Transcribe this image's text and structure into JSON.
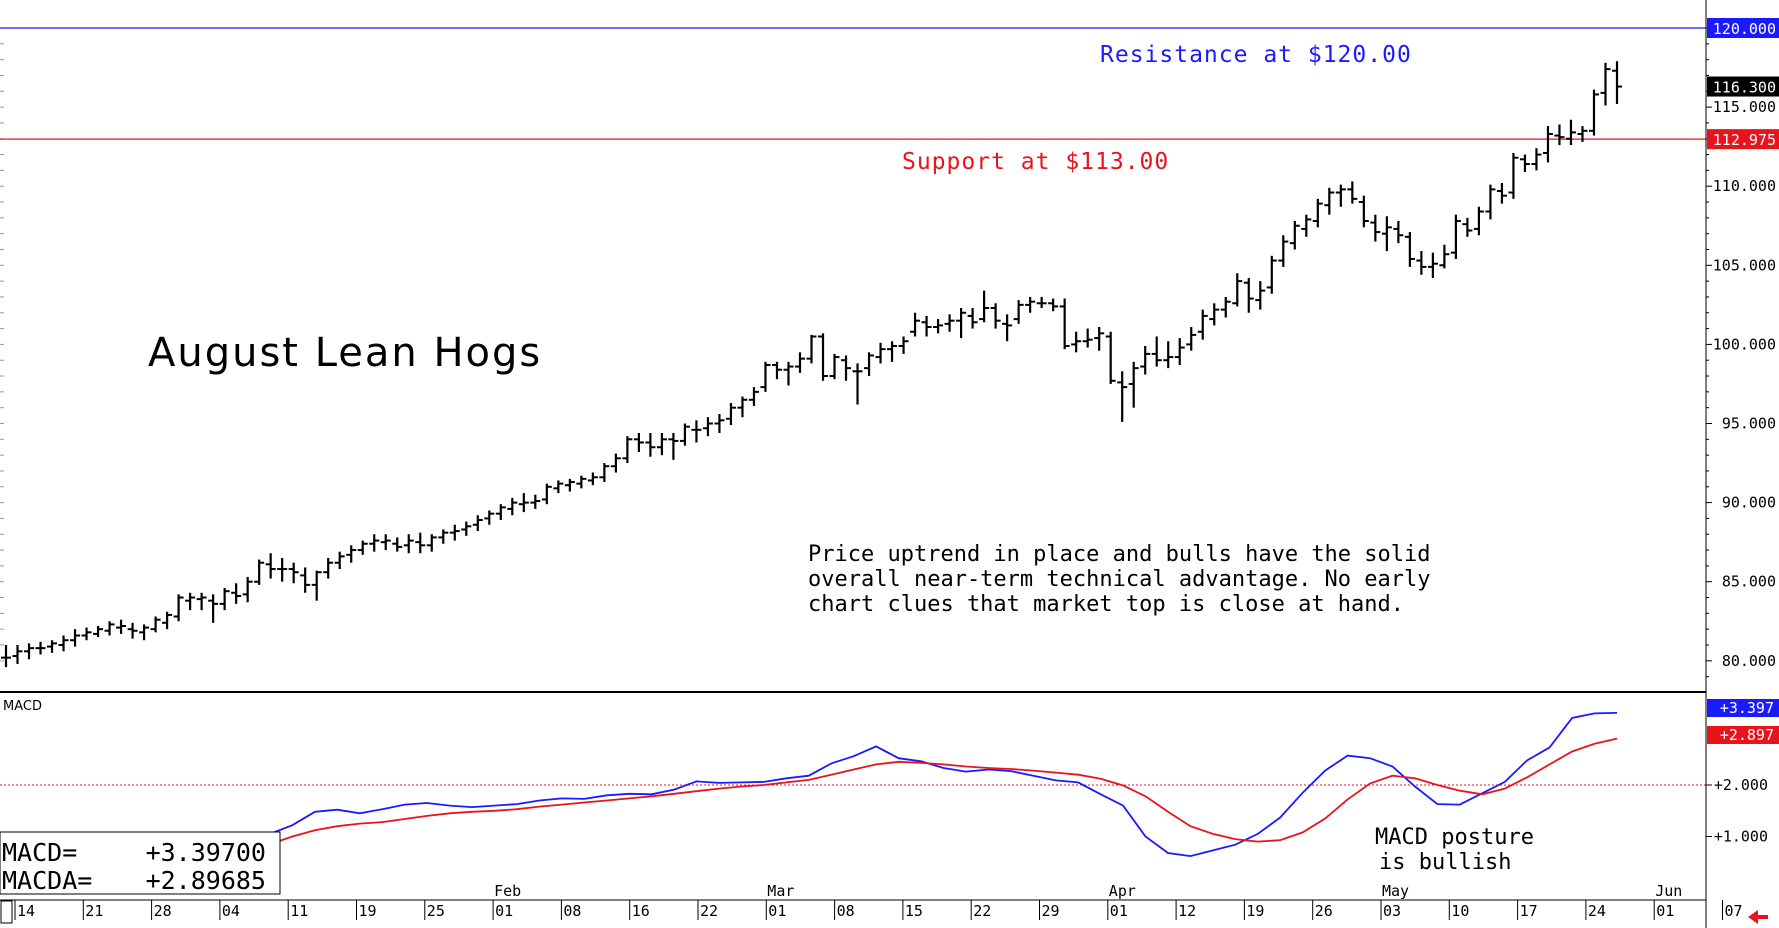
{
  "chart_data": [
    {
      "type": "ohlc",
      "title": "August Lean Hogs",
      "annotation": [
        "Price uptrend in place and bulls have the solid",
        "overall near-term technical advantage. No early",
        "chart clues that market top is close at hand."
      ],
      "ylim": [
        78,
        121
      ],
      "ytick_labels": [
        "120.000",
        "115.000",
        "110.000",
        "105.000",
        "100.000",
        "95.000",
        "90.000",
        "85.000",
        "80.000"
      ],
      "yticks": [
        120,
        115,
        110,
        105,
        100,
        95,
        90,
        85,
        80
      ],
      "resistance": {
        "value": 120.0,
        "label": "Resistance at $120.00",
        "tag": "120.000",
        "color": "#1a1aff"
      },
      "support": {
        "value": 112.975,
        "label": "Support at $113.00",
        "tag": "112.975",
        "color": "#e8141c"
      },
      "last_price": {
        "value": 116.3,
        "tag": "116.300"
      },
      "date_labels": [
        "14",
        "21",
        "28",
        "04",
        "11",
        "19",
        "25",
        "01",
        "08",
        "16",
        "22",
        "01",
        "08",
        "15",
        "22",
        "29",
        "01",
        "12",
        "19",
        "26",
        "03",
        "10",
        "17",
        "24",
        "01",
        "07"
      ],
      "month_labels": [
        {
          "label": "Feb",
          "at": 7
        },
        {
          "label": "Mar",
          "at": 11
        },
        {
          "label": "Apr",
          "at": 16
        },
        {
          "label": "May",
          "at": 20
        },
        {
          "label": "Jun",
          "at": 24
        }
      ],
      "bars": [
        [
          80.2,
          81.0,
          79.6,
          80.2
        ],
        [
          80.3,
          81.0,
          79.8,
          80.6
        ],
        [
          80.6,
          81.1,
          80.1,
          80.8
        ],
        [
          80.8,
          81.2,
          80.4,
          80.8
        ],
        [
          80.9,
          81.3,
          80.5,
          81.1
        ],
        [
          81.0,
          81.6,
          80.6,
          81.3
        ],
        [
          81.3,
          82.0,
          80.9,
          81.6
        ],
        [
          81.6,
          82.1,
          81.3,
          81.8
        ],
        [
          81.7,
          82.2,
          81.5,
          82.0
        ],
        [
          81.9,
          82.5,
          81.6,
          82.3
        ],
        [
          82.1,
          82.6,
          81.7,
          82.2
        ],
        [
          82.0,
          82.4,
          81.4,
          81.9
        ],
        [
          81.8,
          82.3,
          81.3,
          82.1
        ],
        [
          82.0,
          82.8,
          81.8,
          82.6
        ],
        [
          82.4,
          83.1,
          82.0,
          82.9
        ],
        [
          82.8,
          84.2,
          82.5,
          84.0
        ],
        [
          83.8,
          84.3,
          83.2,
          84.0
        ],
        [
          83.9,
          84.3,
          83.2,
          84.0
        ],
        [
          83.8,
          84.2,
          82.4,
          83.6
        ],
        [
          83.6,
          84.6,
          83.2,
          84.4
        ],
        [
          84.3,
          84.9,
          83.6,
          84.1
        ],
        [
          84.2,
          85.3,
          83.7,
          85.0
        ],
        [
          85.0,
          86.4,
          84.8,
          86.2
        ],
        [
          86.1,
          86.8,
          85.2,
          85.8
        ],
        [
          85.8,
          86.5,
          85.0,
          85.8
        ],
        [
          85.8,
          86.2,
          84.9,
          85.6
        ],
        [
          85.4,
          85.9,
          84.3,
          84.8
        ],
        [
          84.8,
          85.7,
          83.8,
          85.6
        ],
        [
          85.6,
          86.5,
          85.2,
          86.2
        ],
        [
          86.2,
          86.9,
          85.8,
          86.6
        ],
        [
          86.7,
          87.3,
          86.2,
          87.0
        ],
        [
          87.0,
          87.6,
          86.7,
          87.4
        ],
        [
          87.4,
          88.0,
          86.9,
          87.6
        ],
        [
          87.5,
          88.0,
          87.0,
          87.6
        ],
        [
          87.4,
          87.8,
          86.9,
          87.2
        ],
        [
          87.3,
          88.0,
          86.8,
          87.6
        ],
        [
          87.5,
          88.1,
          86.8,
          87.3
        ],
        [
          87.3,
          88.0,
          86.9,
          87.8
        ],
        [
          87.8,
          88.3,
          87.4,
          88.1
        ],
        [
          88.1,
          88.6,
          87.6,
          88.2
        ],
        [
          88.3,
          88.8,
          87.9,
          88.5
        ],
        [
          88.6,
          89.2,
          88.2,
          88.9
        ],
        [
          89.0,
          89.5,
          88.6,
          89.3
        ],
        [
          89.3,
          89.9,
          88.9,
          89.7
        ],
        [
          89.6,
          90.3,
          89.2,
          90.0
        ],
        [
          89.9,
          90.6,
          89.4,
          90.0
        ],
        [
          90.0,
          90.5,
          89.6,
          90.1
        ],
        [
          90.2,
          91.2,
          89.9,
          91.0
        ],
        [
          90.9,
          91.4,
          90.6,
          91.2
        ],
        [
          91.1,
          91.5,
          90.7,
          91.3
        ],
        [
          91.2,
          91.7,
          90.9,
          91.5
        ],
        [
          91.4,
          91.9,
          91.1,
          91.6
        ],
        [
          91.6,
          92.5,
          91.3,
          92.3
        ],
        [
          92.3,
          93.1,
          91.9,
          92.8
        ],
        [
          92.8,
          94.2,
          92.5,
          94.0
        ],
        [
          94.0,
          94.4,
          93.2,
          93.8
        ],
        [
          93.8,
          94.4,
          92.9,
          93.5
        ],
        [
          93.5,
          94.4,
          93.0,
          94.0
        ],
        [
          94.0,
          94.4,
          92.7,
          93.9
        ],
        [
          93.9,
          95.0,
          93.6,
          94.8
        ],
        [
          94.6,
          95.2,
          93.8,
          94.6
        ],
        [
          94.7,
          95.4,
          94.2,
          95.0
        ],
        [
          95.0,
          95.6,
          94.4,
          95.2
        ],
        [
          95.3,
          96.3,
          94.9,
          96.0
        ],
        [
          96.0,
          96.7,
          95.4,
          96.5
        ],
        [
          96.5,
          97.3,
          96.1,
          97.0
        ],
        [
          97.3,
          98.9,
          97.0,
          98.7
        ],
        [
          98.7,
          98.9,
          97.8,
          98.4
        ],
        [
          98.4,
          98.9,
          97.4,
          98.6
        ],
        [
          98.6,
          99.5,
          98.2,
          99.1
        ],
        [
          99.1,
          100.6,
          98.8,
          100.5
        ],
        [
          100.5,
          100.7,
          97.7,
          98.0
        ],
        [
          98.0,
          99.4,
          97.8,
          99.2
        ],
        [
          99.0,
          99.3,
          97.7,
          98.5
        ],
        [
          98.3,
          98.8,
          96.2,
          98.3
        ],
        [
          98.5,
          99.5,
          98.0,
          99.3
        ],
        [
          99.2,
          100.1,
          98.8,
          99.7
        ],
        [
          99.7,
          100.2,
          98.9,
          99.9
        ],
        [
          99.9,
          100.5,
          99.4,
          100.2
        ],
        [
          100.8,
          102.0,
          100.5,
          101.5
        ],
        [
          101.4,
          101.8,
          100.5,
          101.1
        ],
        [
          101.1,
          101.6,
          100.7,
          101.2
        ],
        [
          101.3,
          101.9,
          100.8,
          101.5
        ],
        [
          101.5,
          102.3,
          100.4,
          102.0
        ],
        [
          101.8,
          102.3,
          101.0,
          101.4
        ],
        [
          101.6,
          103.4,
          101.4,
          102.3
        ],
        [
          102.3,
          102.6,
          101.0,
          101.5
        ],
        [
          101.3,
          101.9,
          100.2,
          101.2
        ],
        [
          101.6,
          102.8,
          101.3,
          102.5
        ],
        [
          102.5,
          103.0,
          102.0,
          102.7
        ],
        [
          102.6,
          103.0,
          102.3,
          102.6
        ],
        [
          102.6,
          102.9,
          102.1,
          102.4
        ],
        [
          102.4,
          102.9,
          99.7,
          99.9
        ],
        [
          100.0,
          100.8,
          99.5,
          100.2
        ],
        [
          100.2,
          101.0,
          99.8,
          100.3
        ],
        [
          100.4,
          101.1,
          99.6,
          100.7
        ],
        [
          100.5,
          100.8,
          97.5,
          97.7
        ],
        [
          97.6,
          98.3,
          95.1,
          97.3
        ],
        [
          97.5,
          98.9,
          96.0,
          98.5
        ],
        [
          98.6,
          99.9,
          98.1,
          99.4
        ],
        [
          99.4,
          100.5,
          98.6,
          99.0
        ],
        [
          99.0,
          100.2,
          98.5,
          99.2
        ],
        [
          99.2,
          100.4,
          98.7,
          99.8
        ],
        [
          100.0,
          101.1,
          99.6,
          100.6
        ],
        [
          100.8,
          102.2,
          100.3,
          101.8
        ],
        [
          101.6,
          102.6,
          101.2,
          102.2
        ],
        [
          102.2,
          103.0,
          101.7,
          102.7
        ],
        [
          102.6,
          104.5,
          102.4,
          104.0
        ],
        [
          103.9,
          104.2,
          102.0,
          102.9
        ],
        [
          102.8,
          104.0,
          102.2,
          103.4
        ],
        [
          103.6,
          105.6,
          103.2,
          105.3
        ],
        [
          105.3,
          106.9,
          104.9,
          106.5
        ],
        [
          106.4,
          107.8,
          106.0,
          107.5
        ],
        [
          107.3,
          108.2,
          106.8,
          107.9
        ],
        [
          107.8,
          109.2,
          107.4,
          108.9
        ],
        [
          108.8,
          109.9,
          108.2,
          109.6
        ],
        [
          109.6,
          110.1,
          108.7,
          109.8
        ],
        [
          109.8,
          110.3,
          108.9,
          109.2
        ],
        [
          109.0,
          109.4,
          107.4,
          107.8
        ],
        [
          107.7,
          108.2,
          106.5,
          107.1
        ],
        [
          107.0,
          108.1,
          105.9,
          107.4
        ],
        [
          107.3,
          107.8,
          106.4,
          106.9
        ],
        [
          106.8,
          107.1,
          104.9,
          105.4
        ],
        [
          105.3,
          105.9,
          104.4,
          104.9
        ],
        [
          104.9,
          105.8,
          104.2,
          105.1
        ],
        [
          105.0,
          106.3,
          104.8,
          105.7
        ],
        [
          105.8,
          108.2,
          105.4,
          107.8
        ],
        [
          107.6,
          108.0,
          106.8,
          107.2
        ],
        [
          107.3,
          108.7,
          106.9,
          108.4
        ],
        [
          108.4,
          110.1,
          107.9,
          109.8
        ],
        [
          109.7,
          110.2,
          108.9,
          109.4
        ],
        [
          109.6,
          112.1,
          109.2,
          111.8
        ],
        [
          111.7,
          112.0,
          110.9,
          111.4
        ],
        [
          111.4,
          112.4,
          111.0,
          112.0
        ],
        [
          112.1,
          113.8,
          111.5,
          113.3
        ],
        [
          113.2,
          113.9,
          112.6,
          113.1
        ],
        [
          113.0,
          114.2,
          112.6,
          113.4
        ],
        [
          113.3,
          113.8,
          112.8,
          113.5
        ],
        [
          113.5,
          116.1,
          113.2,
          115.8
        ],
        [
          115.9,
          117.8,
          115.1,
          117.4
        ],
        [
          117.3,
          117.9,
          115.2,
          116.3
        ]
      ]
    },
    {
      "type": "line",
      "title": "MACD",
      "zero_label": "+2.000",
      "ytick_labels": [
        "+2.000",
        "+1.000"
      ],
      "ylim": [
        0.0,
        3.7
      ],
      "readouts": [
        {
          "label": "MACD=",
          "value": "+3.39700"
        },
        {
          "label": "MACDA=",
          "value": "+2.89685"
        }
      ],
      "series": [
        {
          "name": "MACD",
          "color": "#1a1aff",
          "tag": "+3.397",
          "values": [
            1.05,
            1.22,
            1.48,
            1.52,
            1.45,
            1.53,
            1.62,
            1.65,
            1.6,
            1.57,
            1.6,
            1.63,
            1.7,
            1.74,
            1.73,
            1.8,
            1.83,
            1.82,
            1.91,
            2.07,
            2.04,
            2.05,
            2.06,
            2.13,
            2.18,
            2.42,
            2.56,
            2.75,
            2.52,
            2.46,
            2.33,
            2.26,
            2.3,
            2.27,
            2.18,
            2.09,
            2.05,
            1.82,
            1.6,
            1.0,
            0.68,
            0.62,
            0.73,
            0.84,
            1.05,
            1.37,
            1.85,
            2.28,
            2.57,
            2.52,
            2.36,
            1.97,
            1.63,
            1.62,
            1.84,
            2.06,
            2.48,
            2.73,
            3.3,
            3.39,
            3.4
          ]
        },
        {
          "name": "MACDA",
          "color": "#e8141c",
          "tag": "+2.897",
          "values": [
            0.85,
            1.0,
            1.12,
            1.2,
            1.25,
            1.28,
            1.34,
            1.4,
            1.45,
            1.48,
            1.5,
            1.53,
            1.58,
            1.62,
            1.66,
            1.7,
            1.74,
            1.78,
            1.83,
            1.88,
            1.93,
            1.97,
            2.0,
            2.05,
            2.1,
            2.2,
            2.3,
            2.4,
            2.45,
            2.43,
            2.4,
            2.36,
            2.33,
            2.31,
            2.28,
            2.24,
            2.2,
            2.12,
            1.99,
            1.78,
            1.48,
            1.2,
            1.05,
            0.95,
            0.9,
            0.93,
            1.08,
            1.35,
            1.72,
            2.03,
            2.18,
            2.13,
            2.0,
            1.89,
            1.82,
            1.93,
            2.15,
            2.4,
            2.65,
            2.8,
            2.9
          ]
        }
      ]
    }
  ]
}
